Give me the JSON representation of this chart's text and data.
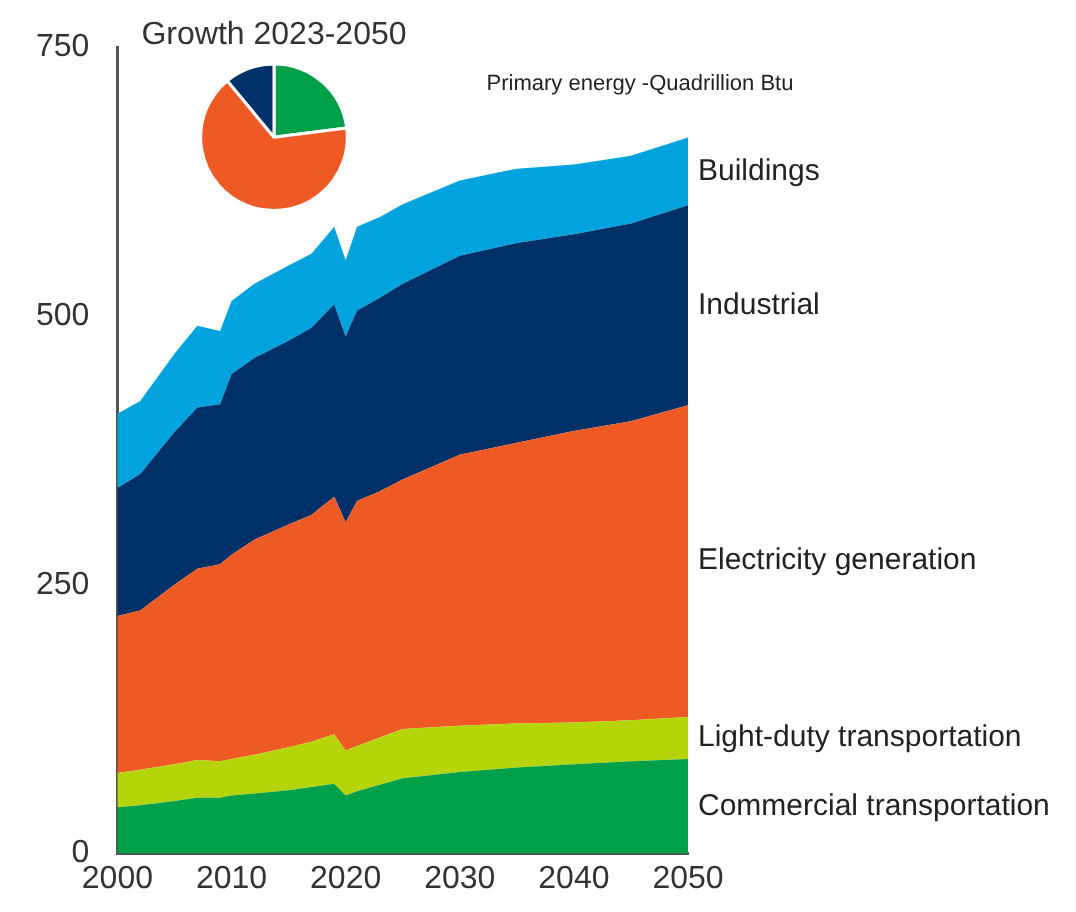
{
  "chart_data": [
    {
      "type": "area",
      "title": "Primary energy -Quadrillion Btu",
      "stacked": true,
      "x": [
        2000,
        2002,
        2005,
        2007,
        2009,
        2010,
        2012,
        2015,
        2017,
        2019,
        2020,
        2021,
        2023,
        2025,
        2030,
        2035,
        2040,
        2045,
        2050
      ],
      "series": [
        {
          "name": "Commercial transportation",
          "color": "#00a04b",
          "values": [
            43,
            45,
            49,
            52,
            52,
            54,
            56,
            59,
            62,
            65,
            54,
            58,
            64,
            70,
            76,
            80,
            83,
            86,
            88
          ]
        },
        {
          "name": "Light-duty transportation",
          "color": "#b5d40a",
          "values": [
            32,
            33,
            34,
            35,
            34,
            34,
            36,
            40,
            42,
            46,
            42,
            42,
            44,
            46,
            43,
            41,
            39,
            38,
            39
          ]
        },
        {
          "name": "Electricity generation",
          "color": "#ef5a24",
          "values": [
            146,
            148,
            167,
            178,
            183,
            190,
            200,
            207,
            211,
            221,
            212,
            228,
            229,
            232,
            252,
            261,
            271,
            278,
            290
          ]
        },
        {
          "name": "Industrial",
          "color": "#003068",
          "values": [
            119,
            127,
            142,
            150,
            149,
            168,
            169,
            171,
            174,
            179,
            173,
            177,
            180,
            182,
            185,
            186,
            183,
            184,
            186
          ]
        },
        {
          "name": "Buildings",
          "color": "#00a3de",
          "values": [
            69,
            68,
            73,
            76,
            68,
            68,
            69,
            70,
            69,
            72,
            71,
            78,
            75,
            74,
            70,
            69,
            65,
            63,
            63
          ]
        }
      ],
      "xlim": [
        2000,
        2050
      ],
      "xticks": [
        2000,
        2010,
        2020,
        2030,
        2040,
        2050
      ],
      "ylim": [
        0,
        750
      ],
      "yticks": [
        0,
        250,
        500,
        750
      ],
      "grid": false,
      "legend": false
    },
    {
      "type": "pie",
      "title": "Growth 2023-2050",
      "categories": [
        null,
        null,
        null
      ],
      "values": [
        23,
        66,
        11
      ],
      "colors": [
        "#00a04b",
        "#ef5a24",
        "#003068"
      ]
    }
  ]
}
